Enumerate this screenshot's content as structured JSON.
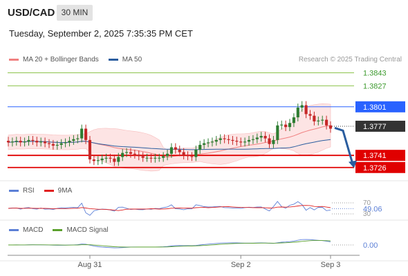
{
  "header": {
    "pair": "USD/CAD",
    "timeframe": "30 MIN",
    "datetime": "Tuesday, September 2, 2025 7:35:35 PM CET",
    "credit": "Research © 2025 Trading Central"
  },
  "legends": {
    "main": [
      {
        "label": "MA 20 + Bollinger Bands",
        "color": "#f08080"
      },
      {
        "label": "MA 50",
        "color": "#2a5d9f"
      }
    ],
    "rsi": [
      {
        "label": "RSI",
        "color": "#5b7fd6"
      },
      {
        "label": "9MA",
        "color": "#e02020"
      }
    ],
    "macd": [
      {
        "label": "MACD",
        "color": "#5b7fd6"
      },
      {
        "label": "MACD Signal",
        "color": "#5aa02c"
      }
    ]
  },
  "colors": {
    "up_candle": "#2e7d32",
    "down_candle": "#c62828",
    "resistance": "#8bc34a",
    "pivot": "#2962ff",
    "support": "#e00000",
    "current": "#333333",
    "arrow": "#2a5d9f",
    "band_fill": "#fde0e0"
  },
  "chart_data": [
    {
      "type": "candlestick",
      "title": "USD/CAD 30 MIN",
      "x_tick_labels": [
        "Aug 31",
        "Sep 2",
        "Sep 3"
      ],
      "ylim": [
        1.3713,
        1.3852
      ],
      "levels": [
        {
          "value": 1.3843,
          "label": "1.3843",
          "kind": "resistance"
        },
        {
          "value": 1.3827,
          "label": "1.3827",
          "kind": "resistance"
        },
        {
          "value": 1.3801,
          "label": "1.3801",
          "kind": "pivot"
        },
        {
          "value": 1.3777,
          "label": "1.3777",
          "kind": "current"
        },
        {
          "value": 1.3741,
          "label": "1.3741",
          "kind": "support"
        },
        {
          "value": 1.3726,
          "label": "1.3726",
          "kind": "support"
        }
      ],
      "projection": {
        "from": 1.3775,
        "to": 1.3727
      },
      "close_series": [
        1.3757,
        1.3758,
        1.3759,
        1.3757,
        1.3758,
        1.376,
        1.3759,
        1.3757,
        1.3758,
        1.3756,
        1.3755,
        1.3753,
        1.3754,
        1.3756,
        1.3757,
        1.3759,
        1.3761,
        1.3762,
        1.3774,
        1.376,
        1.3736,
        1.3734,
        1.3735,
        1.3737,
        1.3738,
        1.3737,
        1.3733,
        1.3739,
        1.3744,
        1.3745,
        1.3743,
        1.3742,
        1.374,
        1.3738,
        1.3738,
        1.3737,
        1.3738,
        1.3738,
        1.374,
        1.3743,
        1.3751,
        1.3748,
        1.3745,
        1.3741,
        1.374,
        1.3739,
        1.3748,
        1.3754,
        1.3756,
        1.3757,
        1.3758,
        1.376,
        1.3762,
        1.3761,
        1.376,
        1.3759,
        1.3758,
        1.3757,
        1.3758,
        1.376,
        1.3761,
        1.3763,
        1.3765,
        1.3762,
        1.3755,
        1.376,
        1.3778,
        1.3779,
        1.3776,
        1.3781,
        1.3788,
        1.38,
        1.3803,
        1.3792,
        1.379,
        1.3783,
        1.3784,
        1.3785,
        1.3778,
        1.3774
      ]
    },
    {
      "type": "line",
      "title": "RSI",
      "series": [
        {
          "name": "RSI"
        },
        {
          "name": "9MA"
        }
      ],
      "reference_levels": [
        70,
        30
      ],
      "last_value": 49.06,
      "last_label": "49.06"
    },
    {
      "type": "line",
      "title": "MACD",
      "series": [
        {
          "name": "MACD"
        },
        {
          "name": "MACD Signal"
        }
      ],
      "reference_levels": [
        0
      ],
      "last_value": 0.0,
      "last_label": "0.00"
    }
  ]
}
